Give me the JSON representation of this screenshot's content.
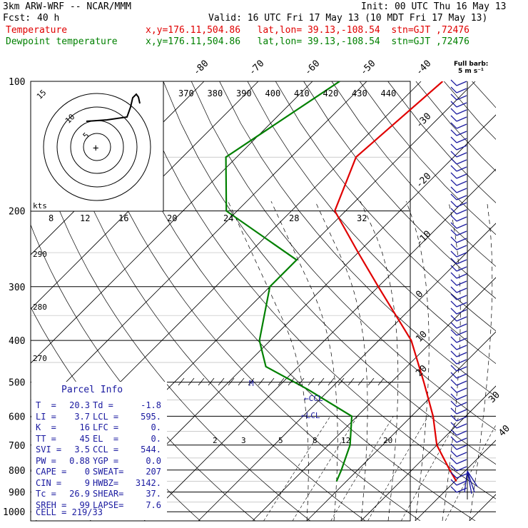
{
  "header": {
    "model": "3km ARW-WRF -- NCAR/MMM",
    "init": "Init: 00 UTC Thu 16 May 13",
    "fcst_label": "Fcst:",
    "fcst_value": "40 h",
    "valid": "Valid: 16 UTC Fri 17 May 13 (10 MDT Fri 17 May 13)",
    "temp_label": "Temperature",
    "dew_label": "Dewpoint temperature",
    "temp_loc": "x,y=176.11,504.86   lat,lon= 39.13,-108.54  stn=GJT ,72476",
    "dew_loc": "x,y=176.11,504.86   lat,lon= 39.13,-108.54  stn=GJT ,72476",
    "full_barb": "Full barb:",
    "full_barb_unit": "5 m s⁻¹"
  },
  "colors": {
    "temperature": "#e00000",
    "dewpoint": "#008000",
    "wind": "#1a1aa0",
    "panel_text": "#1a1aa0"
  },
  "chart_data": {
    "type": "line",
    "pressure_ticks": [
      "100",
      "200",
      "300",
      "400",
      "500",
      "600",
      "700",
      "800",
      "900",
      "1000"
    ],
    "isotherm_labels_top": [
      "-80",
      "-70",
      "-60",
      "-50",
      "-40"
    ],
    "isotherm_labels_right": [
      "-30",
      "-20",
      "-10",
      "0",
      "10",
      "20",
      "30",
      "40"
    ],
    "theta_labels": [
      "370",
      "380",
      "390",
      "400",
      "410",
      "420",
      "430",
      "440"
    ],
    "mixing_ratio_labels": [
      "2",
      "3",
      "5",
      "8",
      "12",
      "20"
    ],
    "hodograph": {
      "unit": "kts",
      "ring_labels": [
        "5",
        "10",
        "15"
      ],
      "speed_labels": [
        "8",
        "12",
        "16",
        "20",
        "24",
        "28",
        "32"
      ],
      "left_labels": [
        "290",
        "280",
        "270"
      ]
    },
    "series": [
      {
        "name": "Temperature",
        "points": [
          [
            100,
            -56
          ],
          [
            150,
            -58
          ],
          [
            200,
            -52
          ],
          [
            250,
            -40
          ],
          [
            300,
            -30
          ],
          [
            400,
            -14
          ],
          [
            500,
            -4
          ],
          [
            600,
            4
          ],
          [
            700,
            10
          ],
          [
            800,
            17
          ],
          [
            850,
            20.3
          ]
        ]
      },
      {
        "name": "Dewpoint temperature",
        "points": [
          [
            100,
            -75
          ],
          [
            150,
            -82
          ],
          [
            200,
            -72
          ],
          [
            260,
            -50
          ],
          [
            300,
            -50
          ],
          [
            400,
            -42
          ],
          [
            460,
            -36
          ],
          [
            520,
            -24
          ],
          [
            600,
            -11
          ],
          [
            700,
            -6
          ],
          [
            800,
            -3
          ],
          [
            850,
            -1.8
          ]
        ]
      }
    ],
    "markers": {
      "ccl": "←CCL",
      "lcl": "←LCL",
      "m": "M"
    }
  },
  "parcel": {
    "title": "Parcel Info",
    "rows": [
      [
        "T  =",
        "20.3",
        "Td =",
        "-1.8"
      ],
      [
        "LI =",
        "3.7",
        "LCL =",
        "595."
      ],
      [
        "K  =",
        "16",
        "LFC =",
        "0."
      ],
      [
        "TT =",
        "45",
        "EL  =",
        "0."
      ],
      [
        "SVI =",
        "3.5",
        "CCL =",
        "544."
      ],
      [
        "PW =",
        "0.88",
        "YGP =",
        "0.0"
      ],
      [
        "CAPE =",
        "0",
        "SWEAT=",
        "207"
      ],
      [
        "CIN =",
        "9",
        "HWBZ=",
        "3142."
      ],
      [
        "Tc =",
        "26.9",
        "SHEAR=",
        "37."
      ],
      [
        "SREH =",
        "99",
        "LAPSE=",
        "7.6"
      ]
    ],
    "cell": "CELL = 219/33"
  }
}
